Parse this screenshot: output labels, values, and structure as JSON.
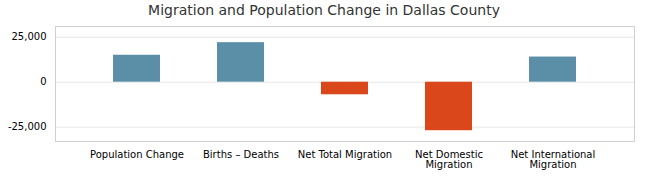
{
  "chart_data": {
    "type": "bar",
    "title": "Migration and Population Change in Dallas County",
    "categories": [
      "Population Change",
      "Births – Deaths",
      "Net Total Migration",
      "Net Domestic\nMigration",
      "Net International\nMigration"
    ],
    "values": [
      15000,
      22000,
      -7000,
      -27000,
      14000
    ],
    "colors": [
      "#5b8fa8",
      "#5b8fa8",
      "#d9471a",
      "#d9471a",
      "#5b8fa8"
    ],
    "ylim": [
      -33000,
      31000
    ],
    "yticks": [
      {
        "value": -25000,
        "label": "-25,000"
      },
      0,
      {
        "value": 25000,
        "label": "25,000"
      }
    ],
    "grid": true
  }
}
